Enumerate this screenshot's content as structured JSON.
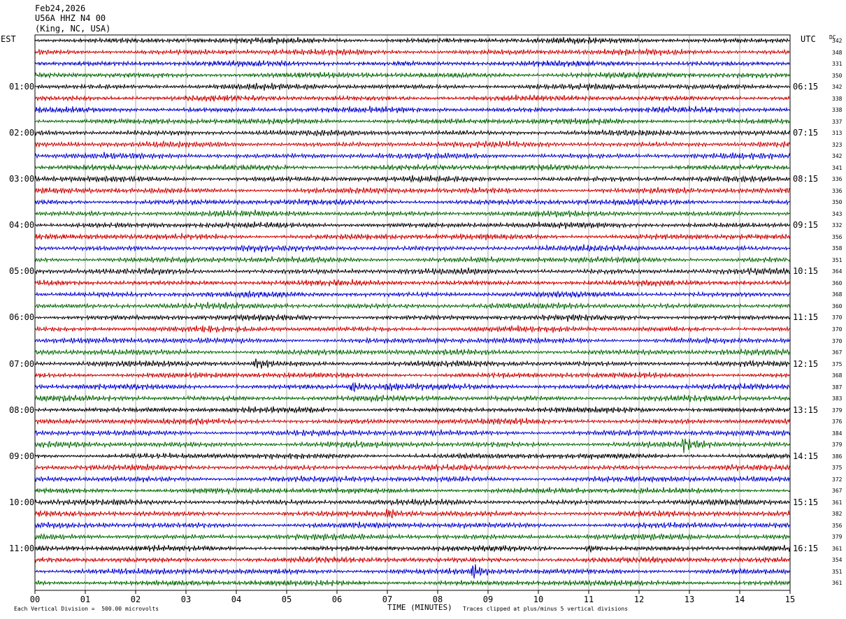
{
  "header": {
    "date": "Feb24,2026",
    "station": "U56A HHZ N4 00",
    "location": "(King, NC, USA)"
  },
  "labels": {
    "left_tz": "EST",
    "right_tz": "UTC",
    "dc_heading": "DC"
  },
  "footer": {
    "scale_note": "Each Vertical Division =  500.00 microvolts",
    "xlabel": "TIME (MINUTES)",
    "clip_note": "Traces clipped at plus/minus 5 vertical divisions"
  },
  "colors": {
    "trace_cycle": [
      "#000000",
      "#cc0000",
      "#0000cc",
      "#006600"
    ],
    "grid": "#000000"
  },
  "chart_data": {
    "type": "line",
    "description_type": "helicorder",
    "x_ticks": [
      "00",
      "01",
      "02",
      "03",
      "04",
      "05",
      "06",
      "07",
      "08",
      "09",
      "10",
      "11",
      "12",
      "13",
      "14",
      "15"
    ],
    "xlim": [
      0,
      15
    ],
    "traces_per_hour": 4,
    "left_hour_labels": [
      "01:00",
      "02:00",
      "03:00",
      "04:00",
      "05:00",
      "06:00",
      "07:00",
      "08:00",
      "09:00",
      "10:00",
      "11:00"
    ],
    "right_hour_labels": [
      "06:15",
      "07:15",
      "08:15",
      "09:15",
      "10:15",
      "11:15",
      "12:15",
      "13:15",
      "14:15",
      "15:15",
      "16:15"
    ],
    "dc_offsets": [
      342,
      348,
      331,
      350,
      342,
      338,
      338,
      337,
      313,
      323,
      342,
      341,
      336,
      336,
      350,
      343,
      332,
      356,
      358,
      351,
      364,
      360,
      368,
      360,
      370,
      370,
      370,
      367,
      375,
      368,
      387,
      383,
      379,
      376,
      384,
      379,
      386,
      375,
      372,
      367,
      361,
      382,
      356,
      379,
      361,
      354,
      351,
      361
    ],
    "events": [
      {
        "row": 28,
        "minute": 4.4,
        "amp": 2.2
      },
      {
        "row": 30,
        "minute": 6.3,
        "amp": 1.8
      },
      {
        "row": 30,
        "minute": 7.0,
        "amp": 1.6
      },
      {
        "row": 35,
        "minute": 12.9,
        "amp": 2.6
      },
      {
        "row": 41,
        "minute": 7.0,
        "amp": 1.6
      },
      {
        "row": 46,
        "minute": 8.7,
        "amp": 2.2
      },
      {
        "row": 44,
        "minute": 11.0,
        "amp": 1.4
      }
    ]
  }
}
